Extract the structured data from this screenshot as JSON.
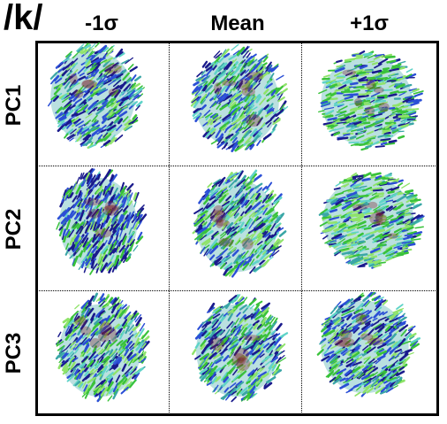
{
  "figure": {
    "title": "/k/",
    "columns": [
      "-1σ",
      "Mean",
      "+1σ"
    ],
    "rows": [
      "PC1",
      "PC2",
      "PC3"
    ],
    "colors": {
      "deep_blue": "#1a1a8c",
      "blue": "#2b4fd6",
      "teal": "#3aa6a6",
      "cyan": "#5fd3c8",
      "green": "#39c23a",
      "light_green": "#8fe36a",
      "dark_red": "#7a1f2a"
    }
  }
}
